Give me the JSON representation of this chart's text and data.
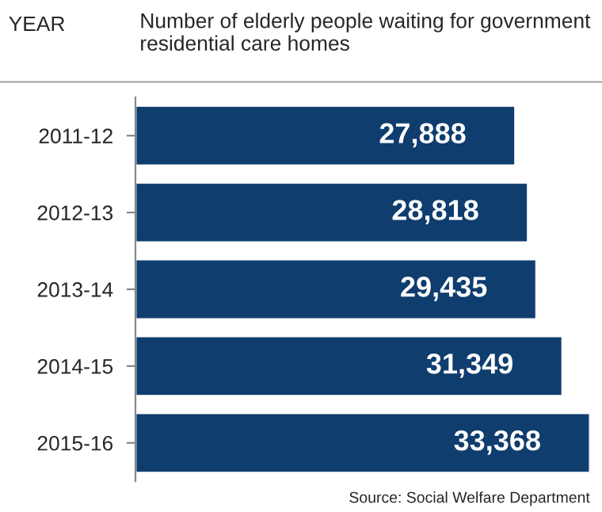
{
  "chart_data": {
    "type": "bar",
    "orientation": "horizontal",
    "title": "Number of elderly people waiting for government residential care homes",
    "ylabel": "YEAR",
    "categories": [
      "2011-12",
      "2012-13",
      "2013-14",
      "2014-15",
      "2015-16"
    ],
    "values": [
      27888,
      28818,
      29435,
      31349,
      33368
    ],
    "value_labels": [
      "27,888",
      "28,818",
      "29,435",
      "31,349",
      "33,368"
    ],
    "color": "#0f3d6e",
    "grid": false,
    "legend": false,
    "annotations": [
      "Source: Social Welfare Department"
    ]
  }
}
